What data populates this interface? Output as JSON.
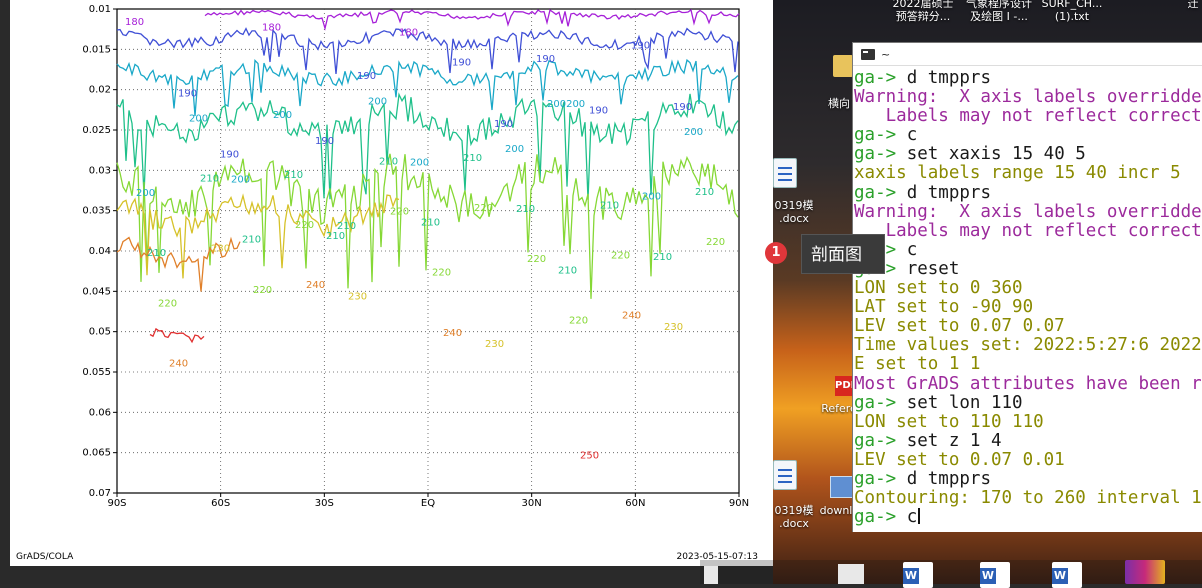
{
  "plot": {
    "footer_left": "GrADS/COLA",
    "footer_right": "2023-05-15-07:13",
    "x_ticks": [
      "90S",
      "60S",
      "30S",
      "EQ",
      "30N",
      "60N",
      "90N"
    ],
    "y_ticks": [
      "0.01",
      "0.015",
      "0.02",
      "0.025",
      "0.03",
      "0.035",
      "0.04",
      "0.045",
      "0.05",
      "0.055",
      "0.06",
      "0.065",
      "0.07"
    ],
    "contour_labels": [
      {
        "t": "180",
        "c": "#a620d8"
      },
      {
        "t": "180",
        "c": "#a620d8"
      },
      {
        "t": "180",
        "c": "#a620d8"
      },
      {
        "t": "190",
        "c": "#3f4fd6"
      },
      {
        "t": "190",
        "c": "#3f4fd6"
      },
      {
        "t": "190",
        "c": "#3f4fd6"
      },
      {
        "t": "190",
        "c": "#3f4fd6"
      },
      {
        "t": "190",
        "c": "#3f4fd6"
      },
      {
        "t": "190",
        "c": "#3f4fd6"
      },
      {
        "t": "190",
        "c": "#3f4fd6"
      },
      {
        "t": "190",
        "c": "#3f4fd6"
      },
      {
        "t": "190",
        "c": "#3f4fd6"
      },
      {
        "t": "190",
        "c": "#3f4fd6"
      },
      {
        "t": "200",
        "c": "#1aa8c8"
      },
      {
        "t": "200",
        "c": "#1aa8c8"
      },
      {
        "t": "200",
        "c": "#1aa8c8"
      },
      {
        "t": "200200",
        "c": "#1aa8c8"
      },
      {
        "t": "200",
        "c": "#1aa8c8"
      },
      {
        "t": "200",
        "c": "#1aa8c8"
      },
      {
        "t": "200",
        "c": "#1aa8c8"
      },
      {
        "t": "200",
        "c": "#1aa8c8"
      },
      {
        "t": "200",
        "c": "#1aa8c8"
      },
      {
        "t": "200",
        "c": "#1aa8c8"
      },
      {
        "t": "210",
        "c": "#1fc08a"
      },
      {
        "t": "210",
        "c": "#1fc08a"
      },
      {
        "t": "210",
        "c": "#1fc08a"
      },
      {
        "t": "210",
        "c": "#1fc08a"
      },
      {
        "t": "210",
        "c": "#1fc08a"
      },
      {
        "t": "210",
        "c": "#1fc08a"
      },
      {
        "t": "210",
        "c": "#1fc08a"
      },
      {
        "t": "210",
        "c": "#1fc08a"
      },
      {
        "t": "210",
        "c": "#1fc08a"
      },
      {
        "t": "210",
        "c": "#1fc08a"
      },
      {
        "t": "210",
        "c": "#1fc08a"
      },
      {
        "t": "210",
        "c": "#1fc08a"
      },
      {
        "t": "210",
        "c": "#1fc08a"
      },
      {
        "t": "210",
        "c": "#1fc08a"
      },
      {
        "t": "220",
        "c": "#86d836"
      },
      {
        "t": "220",
        "c": "#86d836"
      },
      {
        "t": "220",
        "c": "#86d836"
      },
      {
        "t": "220",
        "c": "#86d836"
      },
      {
        "t": "220",
        "c": "#86d836"
      },
      {
        "t": "220",
        "c": "#86d836"
      },
      {
        "t": "220",
        "c": "#86d836"
      },
      {
        "t": "220",
        "c": "#86d836"
      },
      {
        "t": "220",
        "c": "#86d836"
      },
      {
        "t": "220",
        "c": "#86d836"
      },
      {
        "t": "230",
        "c": "#d6c22a"
      },
      {
        "t": "230",
        "c": "#d6c22a"
      },
      {
        "t": "230",
        "c": "#d6c22a"
      },
      {
        "t": "230",
        "c": "#d6c22a"
      },
      {
        "t": "240",
        "c": "#e0802a"
      },
      {
        "t": "240",
        "c": "#e0802a"
      },
      {
        "t": "240",
        "c": "#e0802a"
      },
      {
        "t": "240",
        "c": "#e0802a"
      },
      {
        "t": "250",
        "c": "#e03030"
      }
    ]
  },
  "desktop": {
    "top_labels": [
      "2022届硕士\n预答辩分...",
      "气象程序设计\n及绘图 I -...",
      "SURF_CH...\n(1).txt",
      "迁"
    ],
    "icon_labels": [
      "横向",
      "0319模\n.docx",
      "Refere",
      "0319模\n.docx",
      "downl"
    ]
  },
  "terminal": {
    "title": "~",
    "lines": [
      {
        "text": "ga-> d tmpprs",
        "color": "#1a1a1a",
        "prompt": true
      },
      {
        "text": "Warning:  X axis labels overridden",
        "color": "#9c2a9c"
      },
      {
        "text": "   Labels may not reflect correct",
        "color": "#9c2a9c"
      },
      {
        "text": "ga-> c",
        "color": "#1a1a1a",
        "prompt": true
      },
      {
        "text": "ga-> set xaxis 15 40 5",
        "color": "#1a1a1a",
        "prompt": true
      },
      {
        "text": "xaxis labels range 15 40 incr 5",
        "color": "#8a8a00"
      },
      {
        "text": "ga-> d tmpprs",
        "color": "#1a1a1a",
        "prompt": true
      },
      {
        "text": "Warning:  X axis labels overridden",
        "color": "#9c2a9c"
      },
      {
        "text": "   Labels may not reflect correct",
        "color": "#9c2a9c"
      },
      {
        "text": "ga-> c",
        "color": "#1a1a1a",
        "prompt": true
      },
      {
        "text": "ga-> reset",
        "color": "#1a1a1a",
        "prompt": true
      },
      {
        "text": "LON set to 0 360",
        "color": "#8a8a00"
      },
      {
        "text": "LAT set to -90 90",
        "color": "#8a8a00"
      },
      {
        "text": "LEV set to 0.07 0.07",
        "color": "#8a8a00"
      },
      {
        "text": "Time values set: 2022:5:27:6 2022",
        "color": "#8a8a00"
      },
      {
        "text": "E set to 1 1",
        "color": "#8a8a00"
      },
      {
        "text": "Most GrADS attributes have been re",
        "color": "#9c2a9c"
      },
      {
        "text": "ga-> set lon 110",
        "color": "#1a1a1a",
        "prompt": true
      },
      {
        "text": "LON set to 110 110",
        "color": "#8a8a00"
      },
      {
        "text": "ga-> set z 1 4",
        "color": "#1a1a1a",
        "prompt": true
      },
      {
        "text": "LEV set to 0.07 0.01",
        "color": "#8a8a00"
      },
      {
        "text": "ga-> d tmpprs",
        "color": "#1a1a1a",
        "prompt": true
      },
      {
        "text": "Contouring: 170 to 260 interval 10",
        "color": "#8a8a00"
      },
      {
        "text": "ga-> c",
        "color": "#1a1a1a",
        "prompt": true,
        "cursor": true
      }
    ],
    "prompt_color": "#2aa02a"
  },
  "badge": {
    "count": "1"
  },
  "tooltip": {
    "text": "剖面图"
  }
}
